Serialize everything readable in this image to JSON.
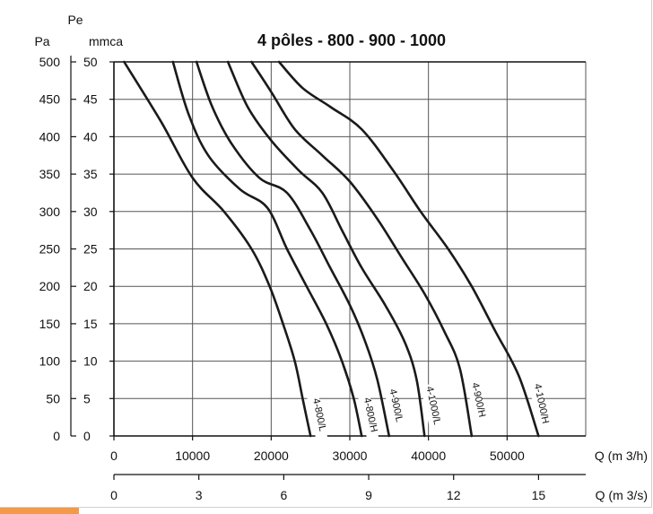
{
  "colors": {
    "background": "#ffffff",
    "grid": "#555555",
    "curve": "#1a1a1a",
    "axis": "#111111",
    "accent": "#f39a4a"
  },
  "chart_data": {
    "type": "line",
    "title": "4 pôles - 800 - 900 - 1000",
    "y_left_unit": "Pa",
    "y_right_unit_top": "Pe",
    "y_right_unit": "mmca",
    "y_pa_ticks": [
      0,
      50,
      100,
      150,
      200,
      250,
      300,
      350,
      400,
      450,
      500
    ],
    "y_mmca_ticks": [
      0,
      5,
      10,
      15,
      20,
      25,
      30,
      35,
      40,
      45,
      50
    ],
    "ylim": [
      0,
      500
    ],
    "x_m3h_ticks": [
      0,
      10000,
      20000,
      30000,
      40000,
      50000
    ],
    "xlabel_m3h": "Q (m 3/h)",
    "x_m3s_ticks": [
      0,
      3,
      6,
      9,
      12,
      15
    ],
    "xlabel_m3s": "Q (m 3/s)",
    "xlim": [
      0,
      60000
    ],
    "grid": true,
    "series": [
      {
        "name": "4-800/L",
        "x": [
          1300,
          6000,
          10000,
          14000,
          17500,
          19800,
          21500,
          23000,
          24000,
          25000
        ],
        "y": [
          500,
          420,
          345,
          300,
          250,
          200,
          150,
          100,
          50,
          0
        ]
      },
      {
        "name": "4-800/H",
        "x": [
          7500,
          9500,
          12000,
          16000,
          19500,
          22000,
          24500,
          27000,
          29000,
          30500,
          31500
        ],
        "y": [
          500,
          430,
          375,
          330,
          305,
          250,
          200,
          150,
          100,
          50,
          0
        ]
      },
      {
        "name": "4-900/L",
        "x": [
          10500,
          12500,
          15000,
          18500,
          22000,
          25000,
          27500,
          30000,
          32000,
          33500,
          35000
        ],
        "y": [
          500,
          440,
          390,
          345,
          325,
          275,
          225,
          175,
          125,
          75,
          0
        ]
      },
      {
        "name": "4-1000/L",
        "x": [
          14500,
          17000,
          20000,
          23500,
          26500,
          29000,
          31500,
          34500,
          37000,
          38500,
          39500
        ],
        "y": [
          500,
          440,
          395,
          355,
          325,
          275,
          225,
          175,
          125,
          75,
          0
        ]
      },
      {
        "name": "4-900/H",
        "x": [
          17500,
          20000,
          23000,
          26500,
          30000,
          33500,
          36500,
          39500,
          42000,
          44000,
          45500
        ],
        "y": [
          500,
          460,
          410,
          375,
          340,
          290,
          240,
          190,
          140,
          90,
          0
        ]
      },
      {
        "name": "4-1000/H",
        "x": [
          21000,
          24000,
          27500,
          31500,
          35500,
          39000,
          42500,
          45500,
          48500,
          51500,
          54000
        ],
        "y": [
          500,
          465,
          440,
          410,
          355,
          300,
          250,
          200,
          140,
          80,
          0
        ]
      }
    ]
  }
}
